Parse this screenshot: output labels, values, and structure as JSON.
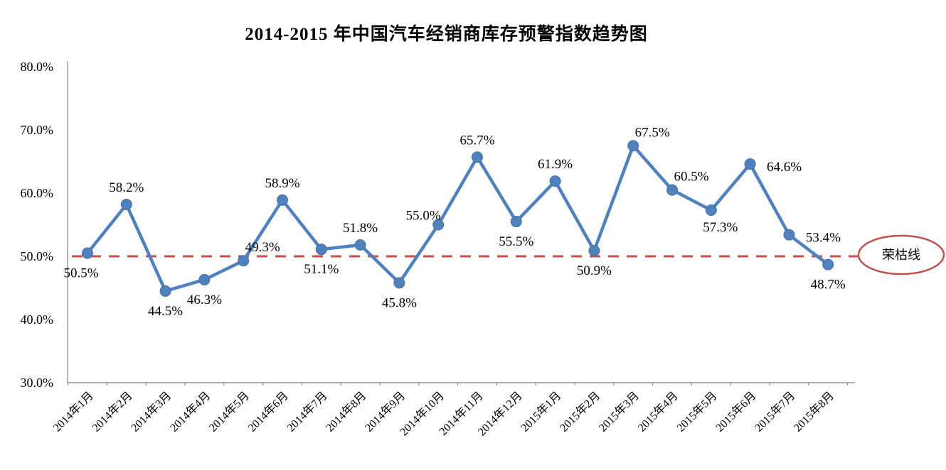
{
  "title": "2014-2015 年中国汽车经销商库存预警指数趋势图",
  "chart_data": {
    "type": "line",
    "title": "2014-2015 年中国汽车经销商库存预警指数趋势图",
    "categories": [
      "2014年1月",
      "2014年2月",
      "2014年3月",
      "2014年4月",
      "2014年5月",
      "2014年6月",
      "2014年7月",
      "2014年8月",
      "2014年9月",
      "2014年10月",
      "2014年11月",
      "2014年12月",
      "2015年1月",
      "2015年2月",
      "2015年3月",
      "2015年4月",
      "2015年5月",
      "2015年6月",
      "2015年7月",
      "2015年8月"
    ],
    "values": [
      50.5,
      58.2,
      44.5,
      46.3,
      49.3,
      58.9,
      51.1,
      51.8,
      45.8,
      55.0,
      65.7,
      55.5,
      61.9,
      50.9,
      67.5,
      60.5,
      57.3,
      64.6,
      53.4,
      48.7
    ],
    "point_labels": [
      "50.5%",
      "58.2%",
      "44.5%",
      "46.3%",
      "49.3%",
      "58.9%",
      "51.1%",
      "51.8%",
      "45.8%",
      "55.0%",
      "65.7%",
      "55.5%",
      "61.9%",
      "50.9%",
      "67.5%",
      "60.5%",
      "57.3%",
      "64.6%",
      "53.4%",
      "48.7%"
    ],
    "label_placement": [
      "below-left",
      "above",
      "below",
      "below",
      "above-right",
      "above",
      "below",
      "above",
      "below",
      "above-left",
      "above",
      "below",
      "above",
      "below",
      "above-right",
      "above-right",
      "below-right",
      "right",
      "right",
      "below"
    ],
    "ylim": [
      30,
      80
    ],
    "ytick_values": [
      80,
      70,
      60,
      50,
      40,
      30
    ],
    "ytick_labels": [
      "80.0%",
      "70.0%",
      "60.0%",
      "50.0%",
      "40.0%",
      "30.0%"
    ],
    "xlabel": "",
    "ylabel": "",
    "grid": false,
    "legend": false,
    "line_color": "#4f81bd",
    "marker_color": "#4f81bd",
    "axis_color": "#808080",
    "reference_line": {
      "value": 50.0,
      "label": "荣枯线",
      "color": "#c0504d",
      "style": "dashed",
      "badge_fill": "#ffffff"
    }
  }
}
